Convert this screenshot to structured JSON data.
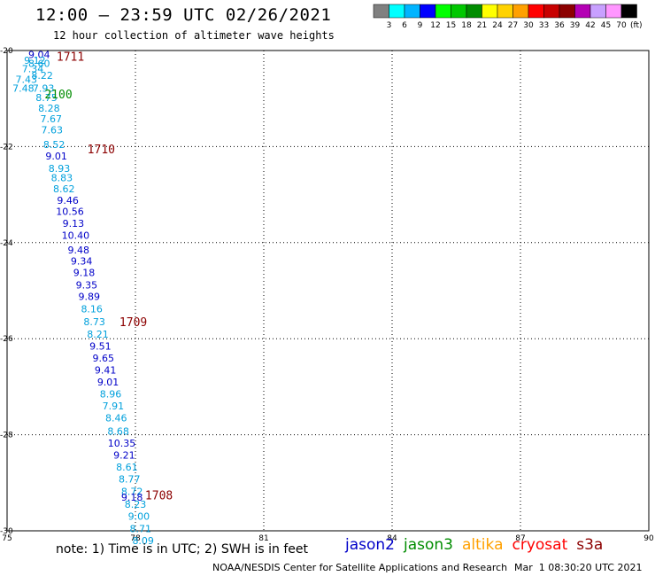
{
  "header": {
    "title": "12:00 — 23:59 UTC 02/26/2021",
    "subtitle": "12 hour collection of altimeter wave heights"
  },
  "colorbar": {
    "swatches": [
      "#808080",
      "#00ffff",
      "#00b4ff",
      "#0000ff",
      "#00ff00",
      "#00c800",
      "#008c00",
      "#ffff00",
      "#ffd200",
      "#ffa000",
      "#ff0000",
      "#c80000",
      "#8c0000",
      "#b400b4",
      "#c8a0ff",
      "#ff96ff",
      "#000000"
    ],
    "labels": [
      "3",
      "6",
      "9",
      "12",
      "15",
      "18",
      "21",
      "24",
      "27",
      "30",
      "33",
      "36",
      "39",
      "42",
      "45",
      "70"
    ],
    "unit": "(ft)"
  },
  "chart_data": {
    "type": "scatter",
    "xlim": [
      75,
      90
    ],
    "ylim": [
      -30,
      -20
    ],
    "x_ticks": [
      "75",
      "78",
      "81",
      "84",
      "87",
      "90"
    ],
    "y_ticks": [
      "-20",
      "-22",
      "-24",
      "-26",
      "-28",
      "-30"
    ],
    "grid": true,
    "points": [
      {
        "x": 75.75,
        "y": -20.08,
        "label": "9.04",
        "color": "#0000c8"
      },
      {
        "x": 75.65,
        "y": -20.2,
        "label": "9.12",
        "color": "#00a0dc"
      },
      {
        "x": 75.75,
        "y": -20.27,
        "label": "8.60",
        "color": "#00a0dc"
      },
      {
        "x": 75.6,
        "y": -20.38,
        "label": "7.34",
        "color": "#00a0dc"
      },
      {
        "x": 75.82,
        "y": -20.52,
        "label": "8.22",
        "color": "#00a0dc"
      },
      {
        "x": 75.45,
        "y": -20.6,
        "label": "7.43",
        "color": "#00a0dc"
      },
      {
        "x": 75.38,
        "y": -20.78,
        "label": "7.48",
        "color": "#00a0dc"
      },
      {
        "x": 75.85,
        "y": -20.78,
        "label": "7.93",
        "color": "#00a0dc"
      },
      {
        "x": 75.92,
        "y": -20.98,
        "label": "8.75",
        "color": "#00a0dc"
      },
      {
        "x": 75.98,
        "y": -21.2,
        "label": "8.28",
        "color": "#00a0dc"
      },
      {
        "x": 76.03,
        "y": -21.42,
        "label": "7.67",
        "color": "#00a0dc"
      },
      {
        "x": 76.05,
        "y": -21.65,
        "label": "7.63",
        "color": "#00a0dc"
      },
      {
        "x": 76.1,
        "y": -21.96,
        "label": "8.52",
        "color": "#00a0dc"
      },
      {
        "x": 76.15,
        "y": -22.2,
        "label": "9.01",
        "color": "#0000c8"
      },
      {
        "x": 76.22,
        "y": -22.45,
        "label": "8.93",
        "color": "#00a0dc"
      },
      {
        "x": 76.28,
        "y": -22.65,
        "label": "8.83",
        "color": "#00a0dc"
      },
      {
        "x": 76.33,
        "y": -22.88,
        "label": "8.62",
        "color": "#00a0dc"
      },
      {
        "x": 76.42,
        "y": -23.12,
        "label": "9.46",
        "color": "#0000c8"
      },
      {
        "x": 76.47,
        "y": -23.35,
        "label": "10.56",
        "color": "#0000c8"
      },
      {
        "x": 76.55,
        "y": -23.6,
        "label": "9.13",
        "color": "#0000c8"
      },
      {
        "x": 76.6,
        "y": -23.85,
        "label": "10.40",
        "color": "#0000c8"
      },
      {
        "x": 76.67,
        "y": -24.15,
        "label": "9.48",
        "color": "#0000c8"
      },
      {
        "x": 76.74,
        "y": -24.38,
        "label": "9.34",
        "color": "#0000c8"
      },
      {
        "x": 76.8,
        "y": -24.62,
        "label": "9.18",
        "color": "#0000c8"
      },
      {
        "x": 76.86,
        "y": -24.88,
        "label": "9.35",
        "color": "#0000c8"
      },
      {
        "x": 76.92,
        "y": -25.12,
        "label": "9.89",
        "color": "#0000c8"
      },
      {
        "x": 76.98,
        "y": -25.38,
        "label": "8.16",
        "color": "#00a0dc"
      },
      {
        "x": 77.04,
        "y": -25.65,
        "label": "8.73",
        "color": "#00a0dc"
      },
      {
        "x": 77.12,
        "y": -25.9,
        "label": "8.21",
        "color": "#00a0dc"
      },
      {
        "x": 77.18,
        "y": -26.15,
        "label": "9.51",
        "color": "#0000c8"
      },
      {
        "x": 77.25,
        "y": -26.4,
        "label": "9.65",
        "color": "#0000c8"
      },
      {
        "x": 77.3,
        "y": -26.65,
        "label": "9.41",
        "color": "#0000c8"
      },
      {
        "x": 77.36,
        "y": -26.9,
        "label": "9.01",
        "color": "#0000c8"
      },
      {
        "x": 77.42,
        "y": -27.15,
        "label": "8.96",
        "color": "#00a0dc"
      },
      {
        "x": 77.48,
        "y": -27.4,
        "label": "7.91",
        "color": "#00a0dc"
      },
      {
        "x": 77.55,
        "y": -27.65,
        "label": "8.46",
        "color": "#00a0dc"
      },
      {
        "x": 77.6,
        "y": -27.92,
        "label": "8.68",
        "color": "#00a0dc"
      },
      {
        "x": 77.68,
        "y": -28.17,
        "label": "10.35",
        "color": "#0000c8"
      },
      {
        "x": 77.74,
        "y": -28.42,
        "label": "9.21",
        "color": "#0000c8"
      },
      {
        "x": 77.8,
        "y": -28.67,
        "label": "8.61",
        "color": "#00a0dc"
      },
      {
        "x": 77.86,
        "y": -28.92,
        "label": "8.77",
        "color": "#00a0dc"
      },
      {
        "x": 77.92,
        "y": -29.18,
        "label": "8.72",
        "color": "#00a0dc"
      },
      {
        "x": 77.92,
        "y": -29.3,
        "label": "9.18",
        "color": "#0000c8"
      },
      {
        "x": 78.0,
        "y": -29.45,
        "label": "8.23",
        "color": "#00a0dc"
      },
      {
        "x": 78.08,
        "y": -29.7,
        "label": "9.00",
        "color": "#00a0dc"
      },
      {
        "x": 78.12,
        "y": -29.95,
        "label": "8.71",
        "color": "#00a0dc"
      },
      {
        "x": 78.18,
        "y": -30.2,
        "label": "8.09",
        "color": "#00a0dc"
      }
    ],
    "time_labels": [
      {
        "x": 76.48,
        "y": -20.12,
        "label": "1711",
        "color": "#8c0000"
      },
      {
        "x": 76.2,
        "y": -20.9,
        "label": "2100",
        "color": "#008c00"
      },
      {
        "x": 77.2,
        "y": -22.05,
        "label": "1710",
        "color": "#8c0000"
      },
      {
        "x": 77.95,
        "y": -25.65,
        "label": "1709",
        "color": "#8c0000"
      },
      {
        "x": 78.55,
        "y": -29.25,
        "label": "1708",
        "color": "#8c0000"
      }
    ]
  },
  "footer": {
    "note": "note: 1) Time is in UTC; 2) SWH is in feet",
    "legend": [
      {
        "label": "jason2",
        "color": "#0000c8"
      },
      {
        "label": "jason3",
        "color": "#008c00"
      },
      {
        "label": "altika",
        "color": "#ffa000"
      },
      {
        "label": "cryosat",
        "color": "#ff0000"
      },
      {
        "label": "s3a",
        "color": "#8c0000"
      }
    ],
    "credit": "NOAA/NESDIS Center for Satellite Applications and Research",
    "timestamp": "Mar  1 08:30:20 UTC 2021"
  }
}
